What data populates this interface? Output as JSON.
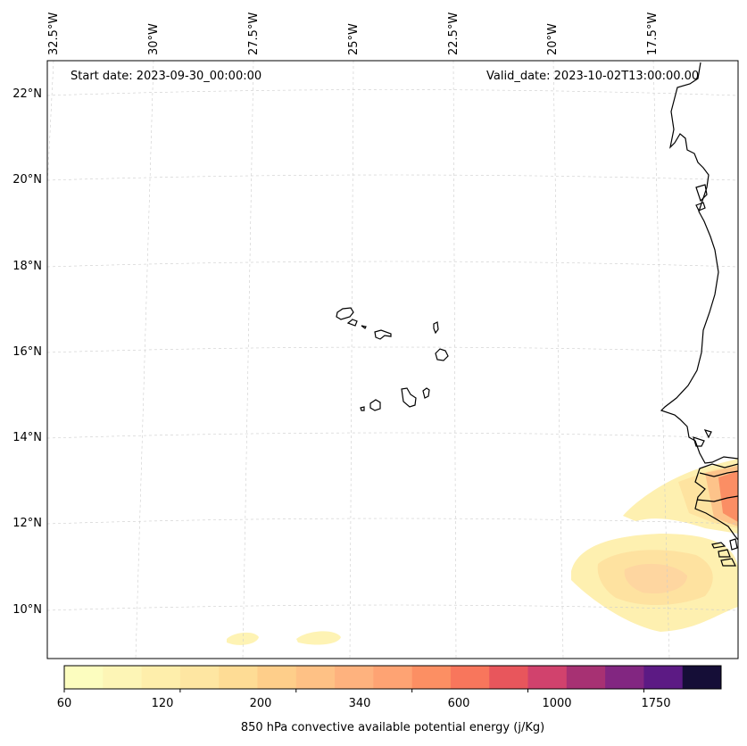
{
  "map": {
    "start_date": "Start date: 2023-09-30_00:00:00",
    "valid_date": "Valid_date: 2023-10-02T13:00:00.00",
    "lon_labels": [
      "32.5°W",
      "30°W",
      "27.5°W",
      "25°W",
      "22.5°W",
      "20°W",
      "17.5°W"
    ],
    "lat_labels": [
      "22°N",
      "20°N",
      "18°N",
      "16°N",
      "14°N",
      "12°N",
      "10°N"
    ]
  },
  "colorbar": {
    "label": "850 hPa convective available potential energy (j/Kg)",
    "tick_labels": [
      "60",
      "120",
      "200",
      "340",
      "600",
      "1000",
      "1750"
    ],
    "colors": [
      "#fcfdbf",
      "#fdf5b6",
      "#feeeab",
      "#fee6a2",
      "#fedc95",
      "#fece8a",
      "#fec185",
      "#feb27e",
      "#fea373",
      "#fc8f63",
      "#f8765c",
      "#e8565c",
      "#d1426d",
      "#a73173",
      "#822681",
      "#5c1a84",
      "#150e37"
    ]
  }
}
